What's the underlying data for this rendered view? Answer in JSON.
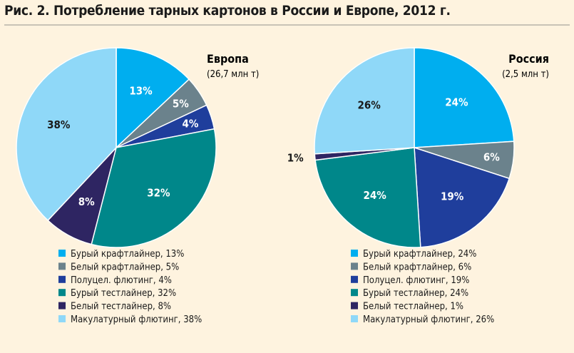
{
  "title": "Рис. 2. Потребление тарных картонов в России и Европе, 2012 г.",
  "colors": {
    "brown_kraftliner": "#00aeef",
    "white_kraftliner": "#6b828c",
    "semichem_fluting": "#1f3e9c",
    "brown_testliner": "#00878a",
    "white_testliner": "#2e2562",
    "recycled_fluting": "#8fd8f8"
  },
  "chart_data": [
    {
      "type": "pie",
      "title": "Европа",
      "subtitle": "(26,7 млн т)",
      "slices": [
        {
          "key": "brown_kraftliner",
          "value": 13,
          "label": "13%",
          "legend": "Бурый крафтлайнер, 13%"
        },
        {
          "key": "white_kraftliner",
          "value": 5,
          "label": "5%",
          "legend": "Белый крафтлайнер, 5%"
        },
        {
          "key": "semichem_fluting",
          "value": 4,
          "label": "4%",
          "legend": "Полуцел. флютинг, 4%"
        },
        {
          "key": "brown_testliner",
          "value": 32,
          "label": "32%",
          "legend": "Бурый тестлайнер, 32%"
        },
        {
          "key": "white_testliner",
          "value": 8,
          "label": "8%",
          "legend": "Белый тестлайнер, 8%"
        },
        {
          "key": "recycled_fluting",
          "value": 38,
          "label": "38%",
          "legend": "Макулатурный флютинг, 38%"
        }
      ]
    },
    {
      "type": "pie",
      "title": "Россия",
      "subtitle": "(2,5 млн т)",
      "slices": [
        {
          "key": "brown_kraftliner",
          "value": 24,
          "label": "24%",
          "legend": "Бурый крафтлайнер, 24%"
        },
        {
          "key": "white_kraftliner",
          "value": 6,
          "label": "6%",
          "legend": "Белый крафтлайнер, 6%"
        },
        {
          "key": "semichem_fluting",
          "value": 19,
          "label": "19%",
          "legend": "Полуцел. флютинг, 19%"
        },
        {
          "key": "brown_testliner",
          "value": 24,
          "label": "24%",
          "legend": "Бурый тестлайнер, 24%"
        },
        {
          "key": "white_testliner",
          "value": 1,
          "label": "1%",
          "legend": "Белый тестлайнер, 1%"
        },
        {
          "key": "recycled_fluting",
          "value": 26,
          "label": "26%",
          "legend": "Макулатурный флютинг, 26%"
        }
      ]
    }
  ]
}
